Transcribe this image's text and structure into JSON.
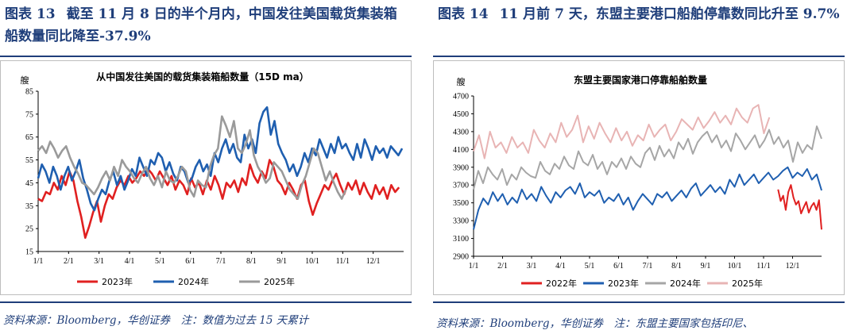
{
  "figures": [
    {
      "label": "图表 13",
      "title": "截至 11 月 8 日的半个月内，中国发往美国载货集装箱船数量同比降至-37.9%",
      "source_note": "资料来源：Bloomberg，华创证券　注：数值为过去 15 天累计"
    },
    {
      "label": "图表 14",
      "title": "11 月前 7 天，东盟主要港口船舶停靠数同比升至 9.7%",
      "source_note": "资料来源：Bloomberg，华创证券　注：东盟主要国家包括印尼、"
    }
  ],
  "chart_data": [
    {
      "type": "line",
      "title": "从中国发往美国的载货集装箱船数量（15D ma）",
      "ylabel": "艘",
      "ylim": [
        15,
        85
      ],
      "yticks": [
        15,
        25,
        35,
        45,
        55,
        65,
        75,
        85
      ],
      "xticks": [
        "1/1",
        "2/1",
        "3/1",
        "4/1",
        "5/1",
        "6/1",
        "7/1",
        "8/1",
        "9/1",
        "10/1",
        "11/1",
        "12/1"
      ],
      "legend_position": "bottom",
      "grid": false,
      "series": [
        {
          "name": "2023年",
          "color": "#e02020",
          "x_start_month": 1,
          "x_end_month": 12.85,
          "values": [
            38,
            37,
            41,
            40,
            45,
            42,
            48,
            44,
            50,
            46,
            37,
            30,
            21,
            26,
            32,
            37,
            28,
            35,
            40,
            38,
            43,
            46,
            44,
            48,
            45,
            47,
            50,
            48,
            51,
            49,
            46,
            50,
            47,
            44,
            48,
            42,
            46,
            44,
            40,
            47,
            43,
            45,
            40,
            46,
            42,
            48,
            44,
            38,
            45,
            43,
            46,
            41,
            47,
            44,
            53,
            48,
            45,
            50,
            47,
            55,
            52,
            46,
            44,
            40,
            45,
            42,
            38,
            44,
            46,
            37,
            31,
            36,
            40,
            44,
            42,
            46,
            49,
            44,
            40,
            45,
            42,
            46,
            40,
            45,
            41,
            38,
            44,
            40,
            43,
            38,
            44,
            41,
            43
          ]
        },
        {
          "name": "2024年",
          "color": "#1f5fb0",
          "x_start_month": 1,
          "x_end_month": 12.95,
          "values": [
            47,
            53,
            50,
            45,
            52,
            48,
            42,
            48,
            52,
            46,
            50,
            55,
            47,
            42,
            36,
            33,
            38,
            42,
            40,
            46,
            50,
            44,
            48,
            42,
            46,
            51,
            48,
            56,
            52,
            48,
            55,
            53,
            58,
            56,
            50,
            54,
            49,
            46,
            52,
            50,
            45,
            47,
            52,
            55,
            50,
            53,
            48,
            58,
            54,
            60,
            64,
            58,
            62,
            56,
            54,
            66,
            60,
            64,
            58,
            71,
            76,
            78,
            66,
            72,
            62,
            58,
            55,
            50,
            53,
            48,
            52,
            58,
            54,
            60,
            57,
            64,
            60,
            56,
            62,
            58,
            65,
            60,
            62,
            58,
            55,
            62,
            56,
            64,
            60,
            55,
            61,
            58,
            60,
            56,
            61,
            59,
            57,
            60
          ]
        },
        {
          "name": "2025年",
          "color": "#9a9a9a",
          "x_start_month": 1,
          "x_end_month": 11.1,
          "values": [
            59,
            61,
            58,
            63,
            60,
            56,
            59,
            61,
            56,
            52,
            49,
            45,
            44,
            42,
            40,
            43,
            47,
            50,
            46,
            52,
            48,
            55,
            52,
            50,
            47,
            45,
            49,
            52,
            47,
            44,
            48,
            43,
            50,
            46,
            45,
            48,
            52,
            50,
            42,
            39,
            46,
            44,
            43,
            52,
            57,
            60,
            74,
            70,
            65,
            72,
            60,
            58,
            62,
            68,
            57,
            52,
            49,
            45,
            47,
            54,
            52,
            50,
            46,
            42,
            40,
            38,
            44,
            48,
            54,
            60,
            58,
            52,
            46,
            50,
            45,
            41,
            38,
            42
          ]
        }
      ]
    },
    {
      "type": "line",
      "title": "东盟主要国家港口停靠船舶数量",
      "ylabel": "艘",
      "ylim": [
        2900,
        4700
      ],
      "yticks": [
        2900,
        3100,
        3300,
        3500,
        3700,
        3900,
        4100,
        4300,
        4500,
        4700
      ],
      "xticks": [
        "1/1",
        "2/1",
        "3/1",
        "4/1",
        "5/1",
        "6/1",
        "7/1",
        "8/1",
        "9/1",
        "10/1",
        "11/1",
        "12/1"
      ],
      "legend_position": "bottom",
      "grid": false,
      "series": [
        {
          "name": "2022年",
          "color": "#e02020",
          "x_start_month": 11.5,
          "x_end_month": 13,
          "values": [
            3650,
            3520,
            3580,
            3420,
            3620,
            3700,
            3560,
            3480,
            3520,
            3380,
            3450,
            3510,
            3390,
            3460,
            3500,
            3420,
            3530,
            3200
          ]
        },
        {
          "name": "2023年",
          "color": "#1f5fb0",
          "x_start_month": 1,
          "x_end_month": 13,
          "values": [
            3200,
            3420,
            3550,
            3480,
            3620,
            3520,
            3600,
            3480,
            3560,
            3500,
            3650,
            3540,
            3600,
            3520,
            3680,
            3580,
            3500,
            3620,
            3560,
            3640,
            3680,
            3600,
            3720,
            3560,
            3620,
            3580,
            3640,
            3500,
            3560,
            3520,
            3600,
            3480,
            3560,
            3420,
            3520,
            3600,
            3540,
            3480,
            3600,
            3560,
            3620,
            3520,
            3580,
            3640,
            3560,
            3660,
            3720,
            3580,
            3640,
            3700,
            3620,
            3680,
            3600,
            3760,
            3680,
            3820,
            3700,
            3760,
            3820,
            3720,
            3780,
            3840,
            3760,
            3800,
            3860,
            3900,
            3780,
            3840,
            3800,
            3880,
            3760,
            3820,
            3640
          ]
        },
        {
          "name": "2024年",
          "color": "#a6a6a6",
          "x_start_month": 1,
          "x_end_month": 13,
          "values": [
            3650,
            3860,
            3720,
            3900,
            3820,
            3760,
            3880,
            3700,
            3820,
            3760,
            3900,
            3840,
            3800,
            3780,
            3960,
            3860,
            3820,
            3940,
            3880,
            4020,
            3920,
            3880,
            4080,
            3960,
            3920,
            4040,
            3880,
            3960,
            3820,
            3960,
            3900,
            4000,
            3880,
            4020,
            3940,
            3900,
            4060,
            4120,
            3980,
            4140,
            4020,
            4100,
            4000,
            4180,
            4100,
            4220,
            4050,
            4180,
            4250,
            4300,
            4180,
            4260,
            4120,
            4200,
            4080,
            4280,
            4200,
            4100,
            4180,
            4260,
            4120,
            4200,
            4320,
            4160,
            4240,
            4120,
            4200,
            3960,
            4180,
            4060,
            4150,
            4100,
            4360,
            4220
          ]
        },
        {
          "name": "2025年",
          "color": "#e8b4b4",
          "x_start_month": 1,
          "x_end_month": 11.2,
          "values": [
            4080,
            4260,
            4000,
            4300,
            4120,
            4180,
            4060,
            4240,
            4120,
            4180,
            4060,
            4320,
            4200,
            4120,
            4280,
            4180,
            4400,
            4240,
            4320,
            4480,
            4180,
            4360,
            4220,
            4400,
            4280,
            4180,
            4340,
            4200,
            4300,
            4140,
            4260,
            4200,
            4380,
            4240,
            4320,
            4380,
            4200,
            4300,
            4440,
            4380,
            4320,
            4460,
            4340,
            4420,
            4520,
            4400,
            4480,
            4380,
            4560,
            4460,
            4400,
            4560,
            4600,
            4280,
            4460
          ]
        }
      ]
    }
  ]
}
